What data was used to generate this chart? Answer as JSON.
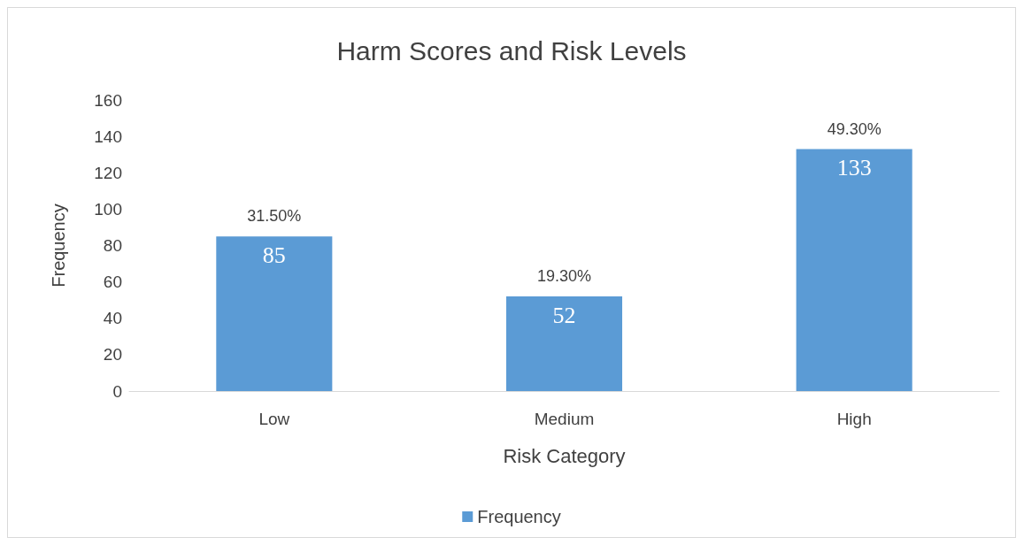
{
  "chart_data": {
    "type": "bar",
    "title": "Harm Scores and Risk Levels",
    "xlabel": "Risk Category",
    "ylabel": "Frequency",
    "categories": [
      "Low",
      "Medium",
      "High"
    ],
    "series": [
      {
        "name": "Frequency",
        "color": "#5b9bd5",
        "values": [
          85,
          52,
          133
        ]
      }
    ],
    "ylim": [
      0,
      160
    ],
    "yticks": [
      0,
      20,
      40,
      60,
      80,
      100,
      120,
      140,
      160
    ],
    "grid": false,
    "legend": "bottom",
    "data_labels": true,
    "annotations": [
      {
        "text": "31.50%",
        "x": "Low",
        "y": 85
      },
      {
        "text": "19.30%",
        "x": "Medium",
        "y": 52
      },
      {
        "text": "49.30%",
        "x": "High",
        "y": 133
      }
    ]
  }
}
